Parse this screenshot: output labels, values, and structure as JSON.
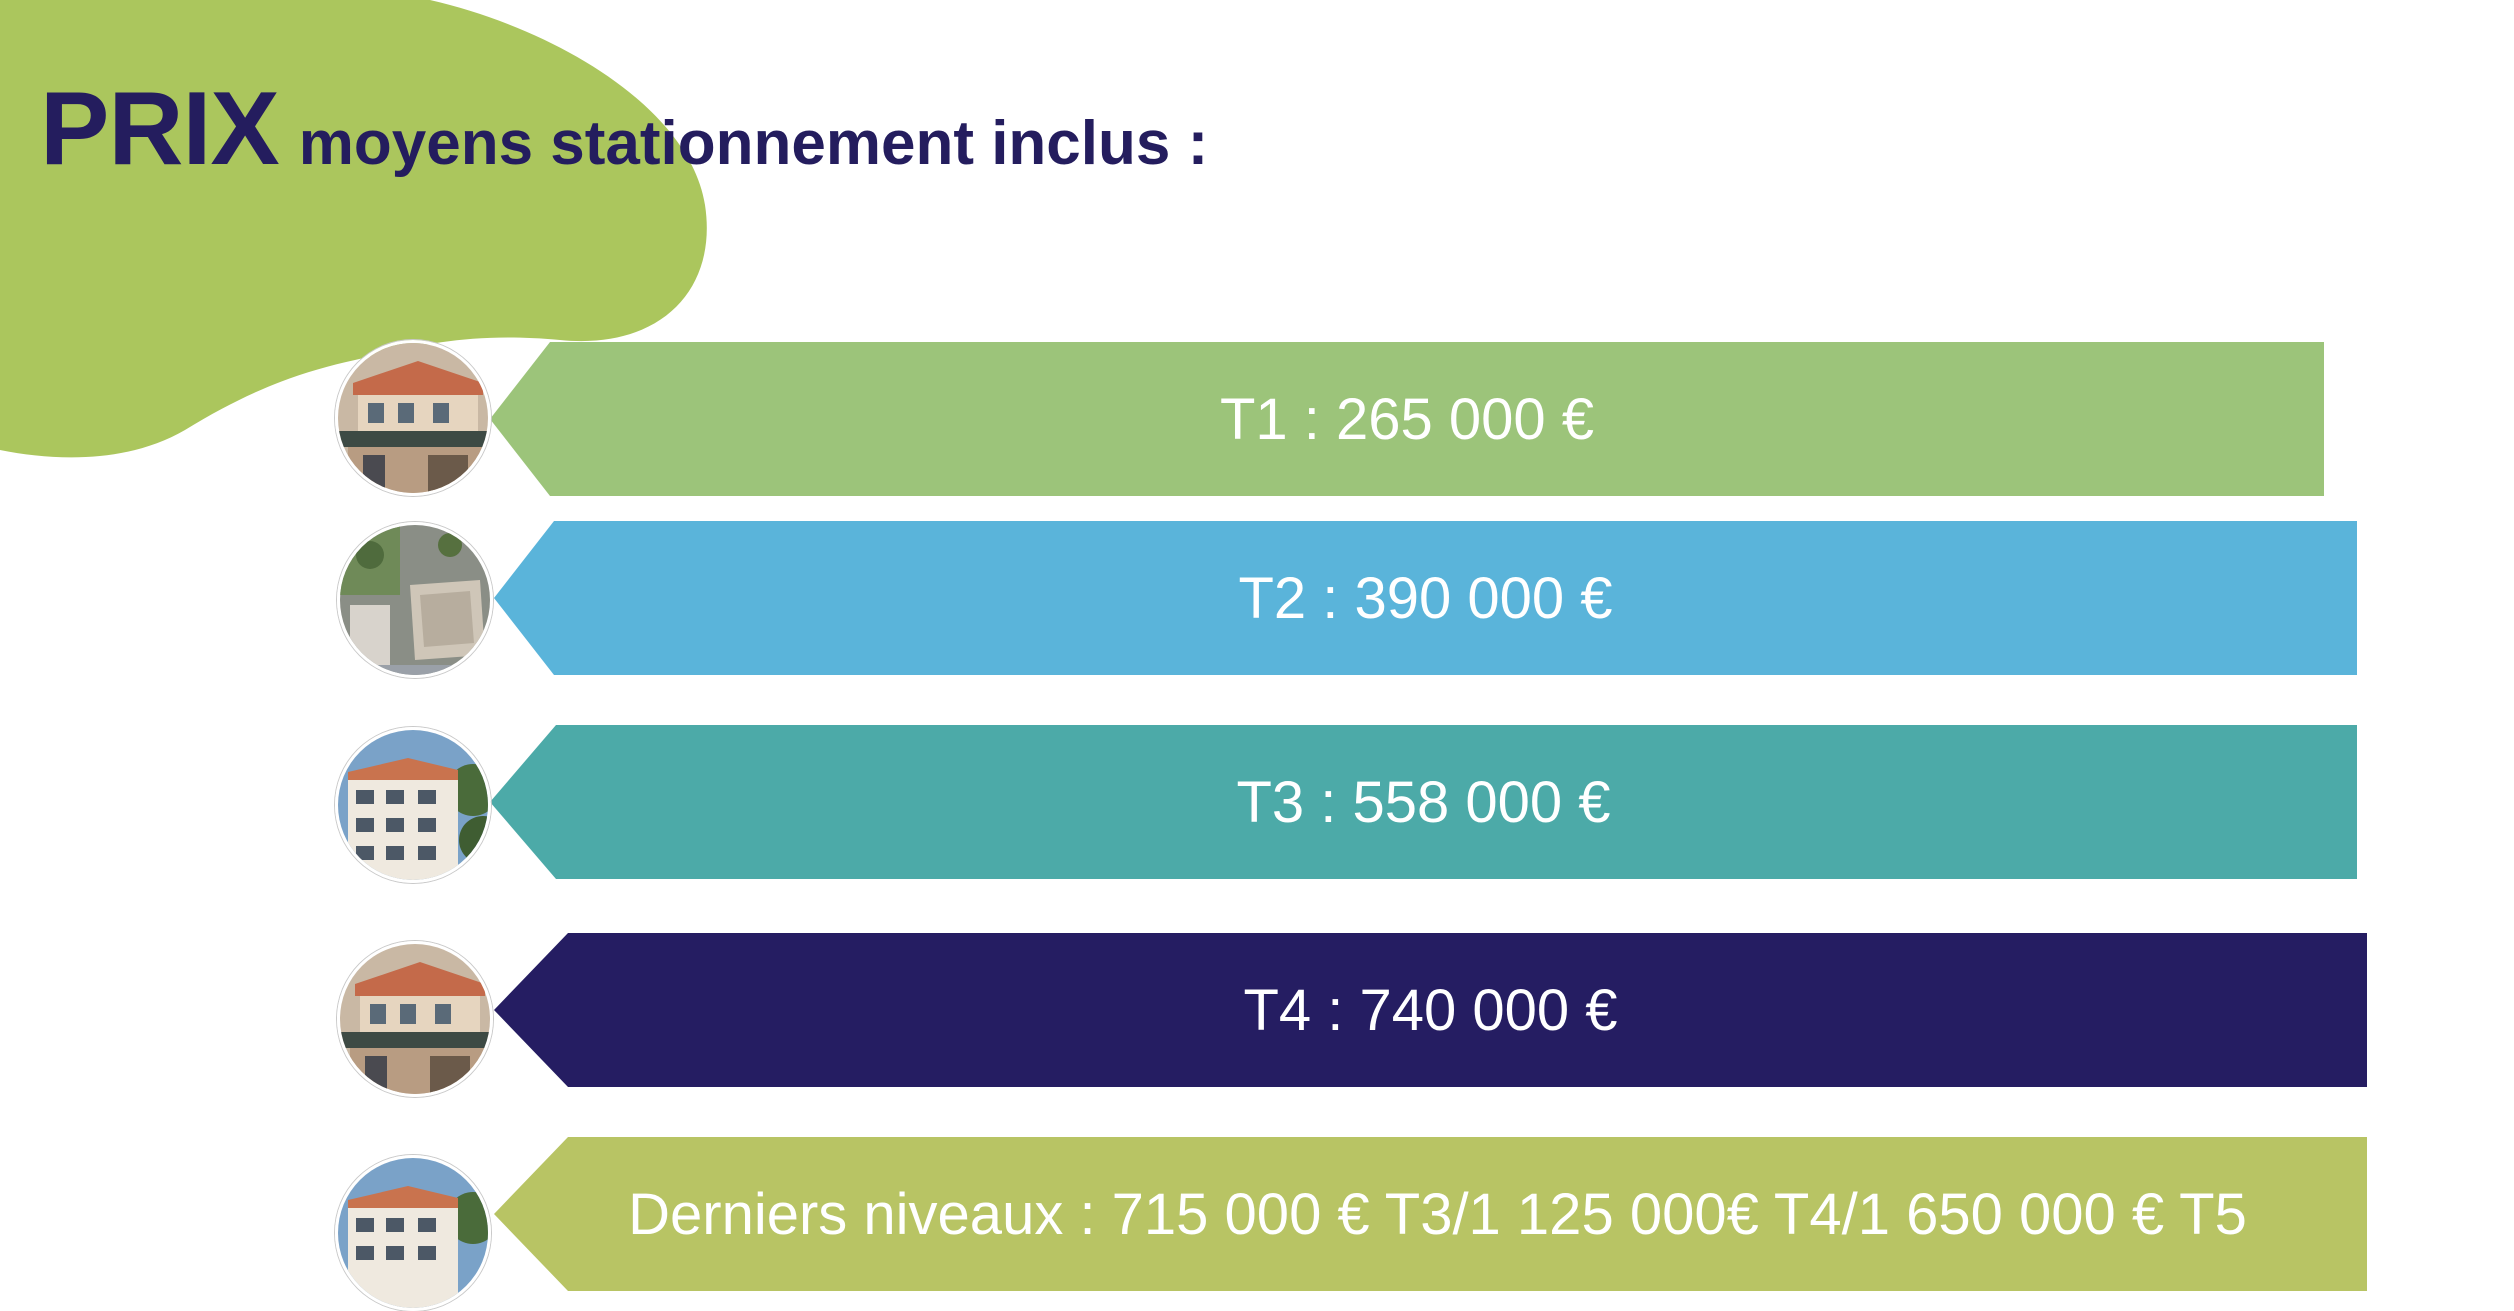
{
  "title": {
    "main": "PRIX",
    "sub": "moyens stationnement inclus :"
  },
  "colors": {
    "title": "#241d5e",
    "blob": "#abc65d",
    "t1": "#9cc47a",
    "t2": "#5ab4da",
    "t3": "#4caaa8",
    "t4": "#251d62",
    "top_floors": "#b8c464"
  },
  "thumbnails": [
    {
      "name": "building-render-1"
    },
    {
      "name": "aerial-view"
    },
    {
      "name": "building-render-2"
    },
    {
      "name": "building-render-1"
    },
    {
      "name": "building-render-2"
    }
  ],
  "prices": [
    {
      "id": "t1",
      "text": "T1 : 265 000 €"
    },
    {
      "id": "t2",
      "text": "T2 : 390 000 €"
    },
    {
      "id": "t3",
      "text": "T3 : 558 000 €"
    },
    {
      "id": "t4",
      "text": "T4 : 740 000 €"
    },
    {
      "id": "top_floors",
      "text": "Derniers niveaux : 715 000 € T3/1 125 000€ T4/1 650 000 € T5"
    }
  ]
}
